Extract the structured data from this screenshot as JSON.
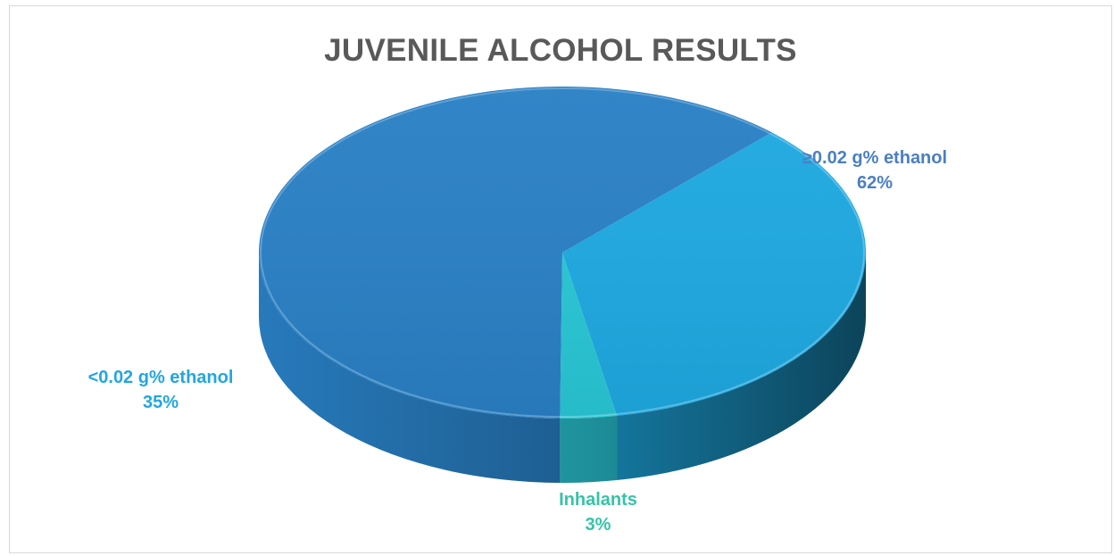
{
  "chart_data": {
    "type": "pie",
    "title": "JUVENILE ALCOHOL RESULTS",
    "categories": [
      "≥0.02 g% ethanol",
      "<0.02 g% ethanol",
      "Inhalants"
    ],
    "values": [
      62,
      35,
      3
    ],
    "data_labels": [
      "62%",
      "35%",
      "3%"
    ],
    "colors": [
      "#2980c5",
      "#1ea9e1",
      "#29c7d6"
    ],
    "label_colors": [
      "#4a7fc4",
      "#22a6e0",
      "#36c3a7"
    ],
    "style": "3d"
  }
}
